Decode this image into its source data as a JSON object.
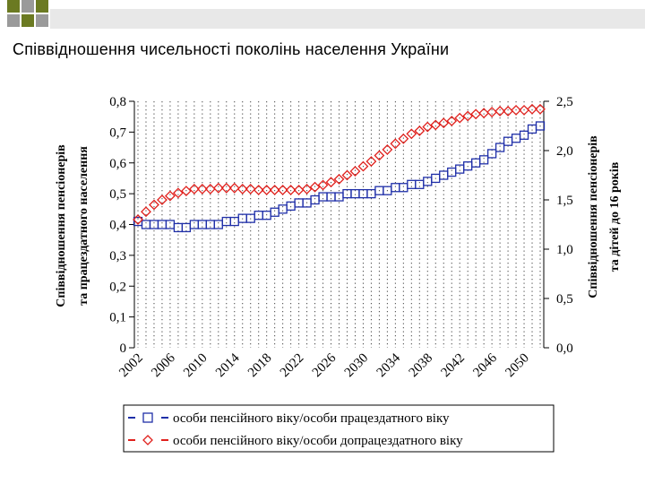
{
  "slide": {
    "title": "Співвідношення чисельності поколінь населення України"
  },
  "colors": {
    "series1": "#1f2fa8",
    "series2": "#e0201c",
    "deco_green": "#6b7a22",
    "deco_gray": "#9a9a9a"
  },
  "chart_data": {
    "type": "line",
    "ylabel": "Співвідношення пенсіонерів та працездатного населення",
    "y2label": "Співвідношення пенсіонерів та дітей до 16 років",
    "ylim": [
      0,
      0.8
    ],
    "y2lim": [
      0,
      2.5
    ],
    "y_ticks": [
      "0",
      "0,1",
      "0,2",
      "0,3",
      "0,4",
      "0,5",
      "0,6",
      "0,7",
      "0,8"
    ],
    "y2_ticks": [
      "0,0",
      "0,5",
      "1,0",
      "1,5",
      "2,0",
      "2,5"
    ],
    "x_ticks": [
      "2002",
      "2006",
      "2010",
      "2014",
      "2018",
      "2022",
      "2026",
      "2030",
      "2034",
      "2038",
      "2042",
      "2046",
      "2050"
    ],
    "grid": "vertical dotted",
    "legend_position": "bottom",
    "x": [
      2002,
      2003,
      2004,
      2005,
      2006,
      2007,
      2008,
      2009,
      2010,
      2011,
      2012,
      2013,
      2014,
      2015,
      2016,
      2017,
      2018,
      2019,
      2020,
      2021,
      2022,
      2023,
      2024,
      2025,
      2026,
      2027,
      2028,
      2029,
      2030,
      2031,
      2032,
      2033,
      2034,
      2035,
      2036,
      2037,
      2038,
      2039,
      2040,
      2041,
      2042,
      2043,
      2044,
      2045,
      2046,
      2047,
      2048,
      2049,
      2050,
      2051,
      2052
    ],
    "series": [
      {
        "name": "особи пенсійного віку/особи працездатного віку",
        "axis": "left",
        "marker": "square",
        "values": [
          0.41,
          0.4,
          0.4,
          0.4,
          0.4,
          0.39,
          0.39,
          0.4,
          0.4,
          0.4,
          0.4,
          0.41,
          0.41,
          0.42,
          0.42,
          0.43,
          0.43,
          0.44,
          0.45,
          0.46,
          0.47,
          0.47,
          0.48,
          0.49,
          0.49,
          0.49,
          0.5,
          0.5,
          0.5,
          0.5,
          0.51,
          0.51,
          0.52,
          0.52,
          0.53,
          0.53,
          0.54,
          0.55,
          0.56,
          0.57,
          0.58,
          0.59,
          0.6,
          0.61,
          0.63,
          0.65,
          0.67,
          0.68,
          0.69,
          0.71,
          0.72
        ]
      },
      {
        "name": "особи пенсійного віку/особи допрацездатного віку",
        "axis": "right",
        "marker": "diamond",
        "values": [
          1.3,
          1.38,
          1.45,
          1.5,
          1.54,
          1.57,
          1.59,
          1.61,
          1.61,
          1.61,
          1.62,
          1.62,
          1.62,
          1.61,
          1.61,
          1.6,
          1.6,
          1.6,
          1.6,
          1.6,
          1.6,
          1.61,
          1.63,
          1.65,
          1.68,
          1.71,
          1.75,
          1.79,
          1.84,
          1.89,
          1.95,
          2.01,
          2.07,
          2.12,
          2.17,
          2.2,
          2.24,
          2.26,
          2.28,
          2.3,
          2.33,
          2.35,
          2.37,
          2.38,
          2.39,
          2.4,
          2.4,
          2.41,
          2.41,
          2.42,
          2.42
        ]
      }
    ]
  }
}
